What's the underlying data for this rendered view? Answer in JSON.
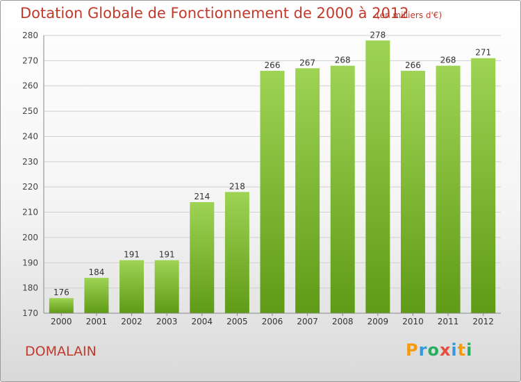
{
  "title": "Dotation Globale de Fonctionnement de 2000 à 2012",
  "subtitle": "(en milliers d'€)",
  "commune": "DOMALAIN",
  "logo": "Proxiti",
  "colors": {
    "title": "#c0392b",
    "bar_light": "#9ed354",
    "bar_dark": "#5f9b16",
    "grid": "#cfcfcf"
  },
  "chart_data": {
    "type": "bar",
    "title": "Dotation Globale de Fonctionnement de 2000 à 2012",
    "subtitle": "(en milliers d'€)",
    "categories": [
      "2000",
      "2001",
      "2002",
      "2003",
      "2004",
      "2005",
      "2006",
      "2007",
      "2008",
      "2009",
      "2010",
      "2011",
      "2012"
    ],
    "values": [
      176,
      184,
      191,
      191,
      214,
      218,
      266,
      267,
      268,
      278,
      266,
      268,
      271
    ],
    "ylim": [
      170,
      280
    ],
    "yticks": [
      170,
      180,
      190,
      200,
      210,
      220,
      230,
      240,
      250,
      260,
      270,
      280
    ],
    "grid": true,
    "data_labels": true
  }
}
